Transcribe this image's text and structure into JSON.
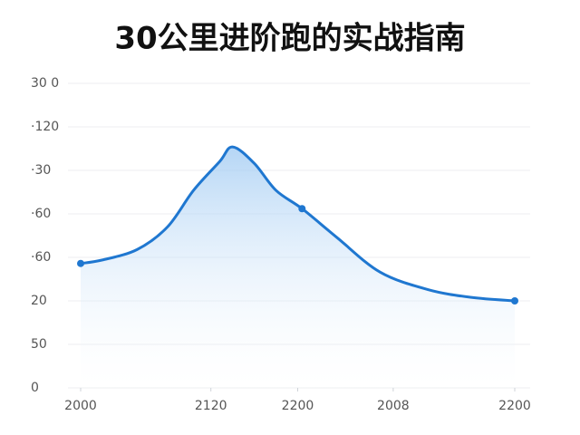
{
  "chart_data": {
    "type": "line",
    "title": "30公里进阶跑的实战指南",
    "x": [
      0,
      5,
      13,
      20,
      26,
      32,
      35,
      40,
      45,
      51,
      59,
      69,
      80,
      90,
      100
    ],
    "values": [
      143,
      147,
      159,
      185,
      227,
      260,
      277,
      258,
      227,
      206,
      173,
      133,
      113,
      104,
      100
    ],
    "markers": [
      0,
      9,
      14
    ],
    "color": "#1f77d0",
    "xlim": [
      0,
      100
    ],
    "xticks": [
      {
        "value": 0,
        "label": "2000"
      },
      {
        "value": 30,
        "label": "2120"
      },
      {
        "value": 50,
        "label": "2200"
      },
      {
        "value": 72,
        "label": "2008"
      },
      {
        "value": 100,
        "label": "2200"
      }
    ],
    "ylim": [
      0,
      350
    ],
    "yticks": [
      0,
      50,
      {
        "value": 100,
        "label": "20"
      },
      {
        "value": 150,
        "label": "·60"
      },
      {
        "value": 200,
        "label": "·60"
      },
      {
        "value": 250,
        "label": "·30"
      },
      {
        "value": 300,
        "label": "·120"
      },
      {
        "value": 350,
        "label": "30 0"
      }
    ],
    "grid": true
  }
}
